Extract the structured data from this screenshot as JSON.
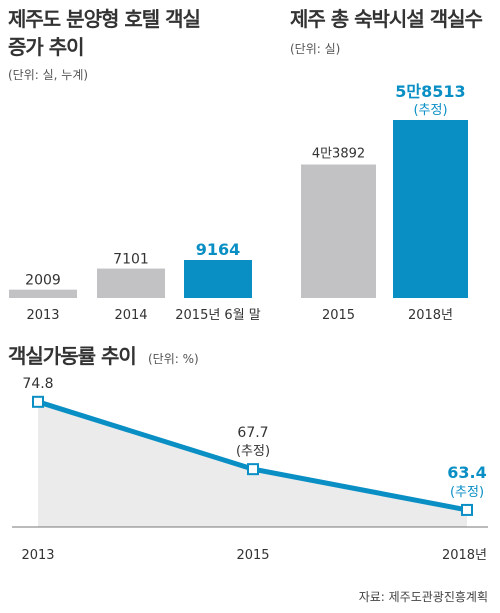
{
  "colors": {
    "gray": "#c2c2c4",
    "blue": "#0a8fc5",
    "text": "#333333",
    "area": "#ebebeb"
  },
  "source": "자료: 제주도관광진흥계획",
  "chart_data": [
    {
      "type": "bar",
      "title_lines": [
        "제주도 분양형 호텔 객실",
        "증가 추이"
      ],
      "unit": "(단위: 실, 누계)",
      "categories": [
        "2013",
        "2014",
        "2015년 6월 말"
      ],
      "values": [
        2009,
        7101,
        9164
      ],
      "value_labels": [
        "2009",
        "7101",
        "9164"
      ],
      "highlight_index": 2,
      "ylim": [
        0,
        9164
      ]
    },
    {
      "type": "bar",
      "title_lines": [
        "제주 총 숙박시설 객실수"
      ],
      "unit": "(단위: 실)",
      "categories": [
        "2015",
        "2018년"
      ],
      "values": [
        43892,
        58513
      ],
      "value_labels": [
        "4만3892",
        "5만8513"
      ],
      "notes": [
        "",
        "(추정)"
      ],
      "highlight_index": 1,
      "ylim": [
        0,
        58513
      ]
    },
    {
      "type": "line",
      "title": "객실가동률 추이",
      "unit": "(단위: %)",
      "x": [
        "2013",
        "2015",
        "2018년"
      ],
      "series": [
        {
          "values": [
            74.8,
            67.7,
            63.4
          ]
        }
      ],
      "value_labels": [
        "74.8",
        "67.7",
        "63.4"
      ],
      "notes": [
        "",
        "(추정)",
        "(추정)"
      ],
      "highlight_index": 2,
      "ylim": [
        61.6,
        77.1
      ]
    }
  ]
}
